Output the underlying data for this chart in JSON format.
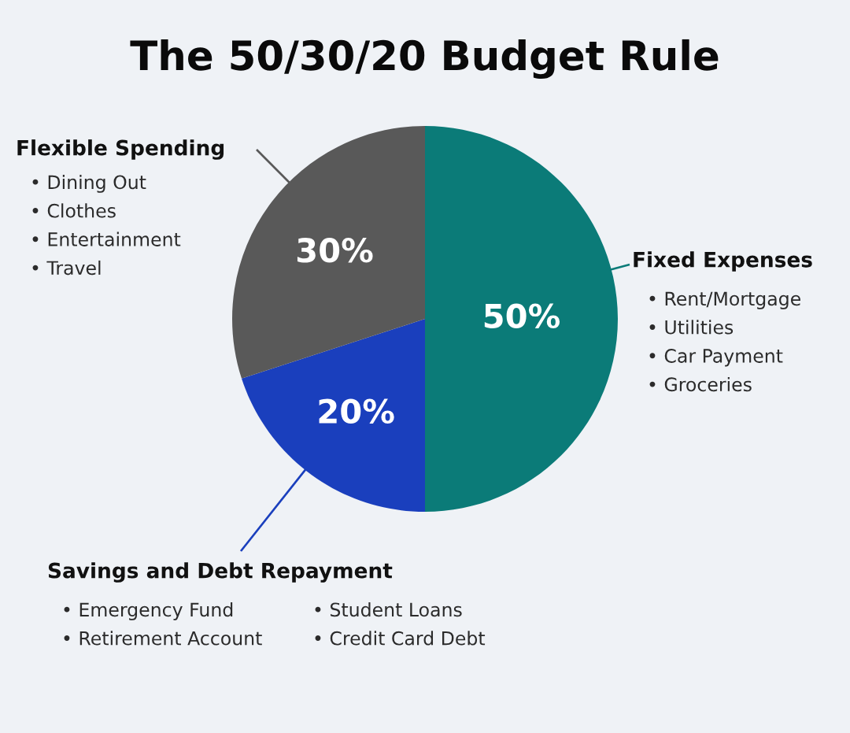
{
  "chart_data": {
    "type": "pie",
    "title": "The 50/30/20 Budget Rule",
    "categories": [
      "Fixed Expenses",
      "Savings and Debt Repayment",
      "Flexible Spending"
    ],
    "values": [
      50,
      20,
      30
    ],
    "value_labels": [
      "50%",
      "20%",
      "30%"
    ],
    "colors": [
      "#0b7b78",
      "#1a3fbd",
      "#595959"
    ],
    "annotations": [
      "• Rent/Mortgage\n• Utilities\n• Car Payment\n• Groceries",
      "• Emergency Fund\n• Retirement Account",
      "• Student Loans\n• Credit Card Debt",
      "• Dining Out\n• Clothes\n• Entertainment\n• Travel"
    ]
  }
}
